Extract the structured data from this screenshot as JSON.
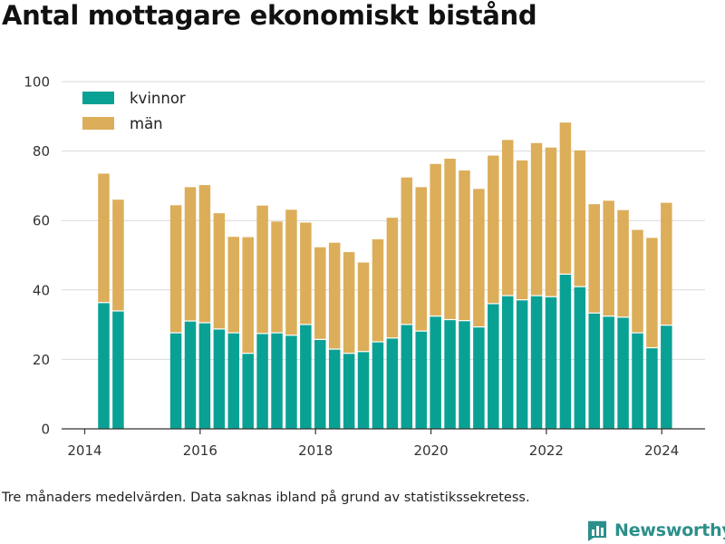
{
  "title": "Antal mottagare ekonomiskt bistånd",
  "footnote": "Tre månaders medelvärden. Data saknas ibland på grund av statistikssekretess.",
  "brand": {
    "name": "Newsworthy"
  },
  "colors": {
    "kvinnor": "#0aa195",
    "man": "#dcae5a",
    "grid": "#d9d9d9",
    "axis": "#333333",
    "brand": "#2c8f8b"
  },
  "chart_data": {
    "type": "bar",
    "stacked": true,
    "x_label_ticks": [
      "2014",
      "2016",
      "2018",
      "2020",
      "2022",
      "2024"
    ],
    "y_ticks": [
      "0",
      "20",
      "40",
      "60",
      "80",
      "100"
    ],
    "ylim": [
      0,
      100
    ],
    "xlim": [
      2013.6,
      2024.75
    ],
    "grid": true,
    "legend": "top-left",
    "x": [
      2014.33,
      2014.58,
      2015.58,
      2015.83,
      2016.08,
      2016.33,
      2016.58,
      2016.83,
      2017.08,
      2017.33,
      2017.58,
      2017.83,
      2018.08,
      2018.33,
      2018.58,
      2018.83,
      2019.08,
      2019.33,
      2019.58,
      2019.83,
      2020.08,
      2020.33,
      2020.58,
      2020.83,
      2021.08,
      2021.33,
      2021.58,
      2021.83,
      2022.08,
      2022.33,
      2022.58,
      2022.83,
      2023.08,
      2023.33,
      2023.58,
      2023.83,
      2024.08
    ],
    "series": [
      {
        "name": "kvinnor",
        "values": [
          36.2,
          33.8,
          27.5,
          30.9,
          30.4,
          28.6,
          27.5,
          21.6,
          27.3,
          27.5,
          26.8,
          29.9,
          25.6,
          22.8,
          21.6,
          22.1,
          24.9,
          26.0,
          29.9,
          28.0,
          32.3,
          31.3,
          31.0,
          29.2,
          35.9,
          38.2,
          37.0,
          38.2,
          37.9,
          44.4,
          40.8,
          33.2,
          32.3,
          32.0,
          27.5,
          23.2,
          29.7
        ]
      },
      {
        "name": "män",
        "values": [
          37.3,
          32.2,
          36.9,
          38.7,
          39.8,
          33.5,
          27.8,
          33.6,
          37.0,
          32.2,
          36.3,
          29.5,
          26.7,
          30.8,
          29.3,
          25.8,
          29.7,
          34.8,
          42.5,
          41.6,
          44.0,
          46.5,
          43.4,
          39.9,
          42.8,
          45.0,
          40.3,
          44.1,
          43.1,
          43.8,
          39.4,
          31.5,
          33.4,
          31.0,
          29.8,
          31.8,
          35.4
        ]
      }
    ]
  }
}
